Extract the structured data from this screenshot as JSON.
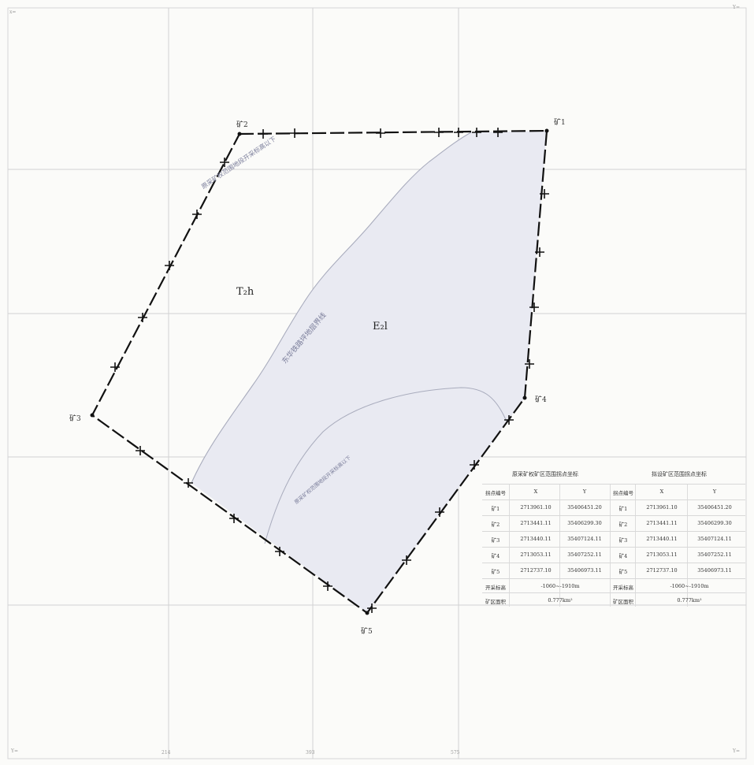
{
  "map": {
    "corner_labels": {
      "top_left": "x=",
      "top_right": "Y=",
      "bottom_left": "Y=",
      "bottom_right": "Y="
    },
    "edge_ticks": [
      "214",
      "393",
      "575"
    ],
    "points": [
      {
        "id": "p1",
        "label": "矿1"
      },
      {
        "id": "p2",
        "label": "矿2"
      },
      {
        "id": "p3",
        "label": "矿3"
      },
      {
        "id": "p4",
        "label": "矿4"
      },
      {
        "id": "p5",
        "label": "矿5"
      }
    ],
    "units": {
      "t2h": "T₂h",
      "e2l": "E₂l"
    },
    "line_labels": {
      "upper": "原采矿权范围地段开采标高以下",
      "middle": "东华铁路坪地层界线",
      "lower": "原采矿权范围地段开采标高以下"
    },
    "colors": {
      "boundary": "#111111",
      "shading": "#e9eaf2",
      "grid": "#cfcfcf",
      "contact": "#a9acbd"
    }
  },
  "table": {
    "left_caption": "原采矿权矿区范围拐点坐标",
    "right_caption": "拟设矿区范围拐点坐标",
    "headers": [
      "拐点编号",
      "X",
      "Y",
      "拐点编号",
      "X",
      "Y"
    ],
    "rows": [
      [
        "矿1",
        "2713961.10",
        "35406451.20",
        "矿1",
        "2713961.10",
        "35406451.20"
      ],
      [
        "矿2",
        "2713441.11",
        "35406299.30",
        "矿2",
        "2713441.11",
        "35406299.30"
      ],
      [
        "矿3",
        "2713440.11",
        "35407124.11",
        "矿3",
        "2713440.11",
        "35407124.11"
      ],
      [
        "矿4",
        "2713053.11",
        "35407252.11",
        "矿4",
        "2713053.11",
        "35407252.11"
      ],
      [
        "矿5",
        "2712737.10",
        "35406973.11",
        "矿5",
        "2712737.10",
        "35406973.11"
      ]
    ],
    "elev_label_left": "开采标高",
    "elev_value_left": "-1060~-1910m",
    "elev_label_right": "开采标高",
    "elev_value_right": "-1060~-1910m",
    "area_label_left": "矿区面积",
    "area_value_left": "0.777km²",
    "area_label_right": "矿区面积",
    "area_value_right": "0.777km²"
  }
}
